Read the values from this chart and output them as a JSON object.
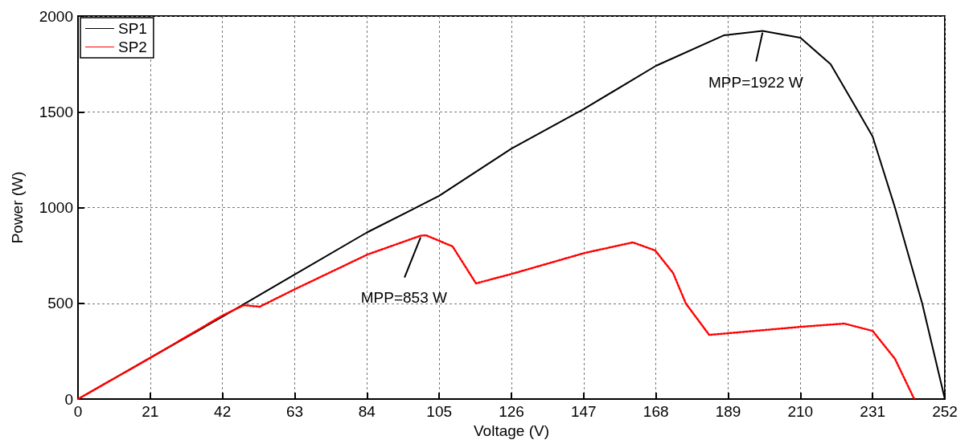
{
  "chart_data": {
    "type": "line",
    "xlabel": "Voltage (V)",
    "ylabel": "Power (W)",
    "xlim": [
      0,
      252
    ],
    "xticks": [
      0,
      21,
      42,
      63,
      84,
      105,
      126,
      147,
      168,
      189,
      210,
      231,
      252
    ],
    "ylim": [
      0,
      2000
    ],
    "yticks": [
      0,
      500,
      1000,
      1500,
      2000
    ],
    "grid": true,
    "legend": "top left",
    "marker": "none",
    "series": [
      {
        "name": "SP1",
        "color": "#000000",
        "line_style": "solid",
        "x": [
          0,
          21,
          42,
          63,
          84,
          105,
          126,
          147,
          168,
          187.7,
          199,
          210,
          218.8,
          226.7,
          231,
          237.5,
          245.4,
          252
        ],
        "values": [
          0,
          215,
          430,
          650,
          870,
          1061,
          1308,
          1514,
          1740,
          1899,
          1922,
          1887,
          1748,
          1505,
          1371,
          1000,
          500,
          0
        ]
      },
      {
        "name": "SP2",
        "color": "#ff0000",
        "line_style": "dotted",
        "x": [
          0,
          21,
          42,
          48.2,
          52.8,
          63.1,
          84.2,
          99.6,
          101.2,
          108.9,
          115.7,
          126.2,
          147.3,
          161.3,
          167.8,
          173,
          176.7,
          183.5,
          189.3,
          210.1,
          222.8,
          231,
          237.5,
          243.1
        ],
        "values": [
          0,
          215,
          436,
          490,
          482,
          574,
          755,
          853,
          855,
          797,
          604,
          654,
          763,
          818,
          776,
          658,
          499,
          335,
          344,
          377,
          394,
          356,
          210,
          0
        ]
      }
    ],
    "annotations": [
      {
        "text": "MPP=1922 W",
        "x": 199,
        "y": 1922
      },
      {
        "text": "MPP=853 W",
        "x": 99.6,
        "y": 853
      }
    ]
  }
}
